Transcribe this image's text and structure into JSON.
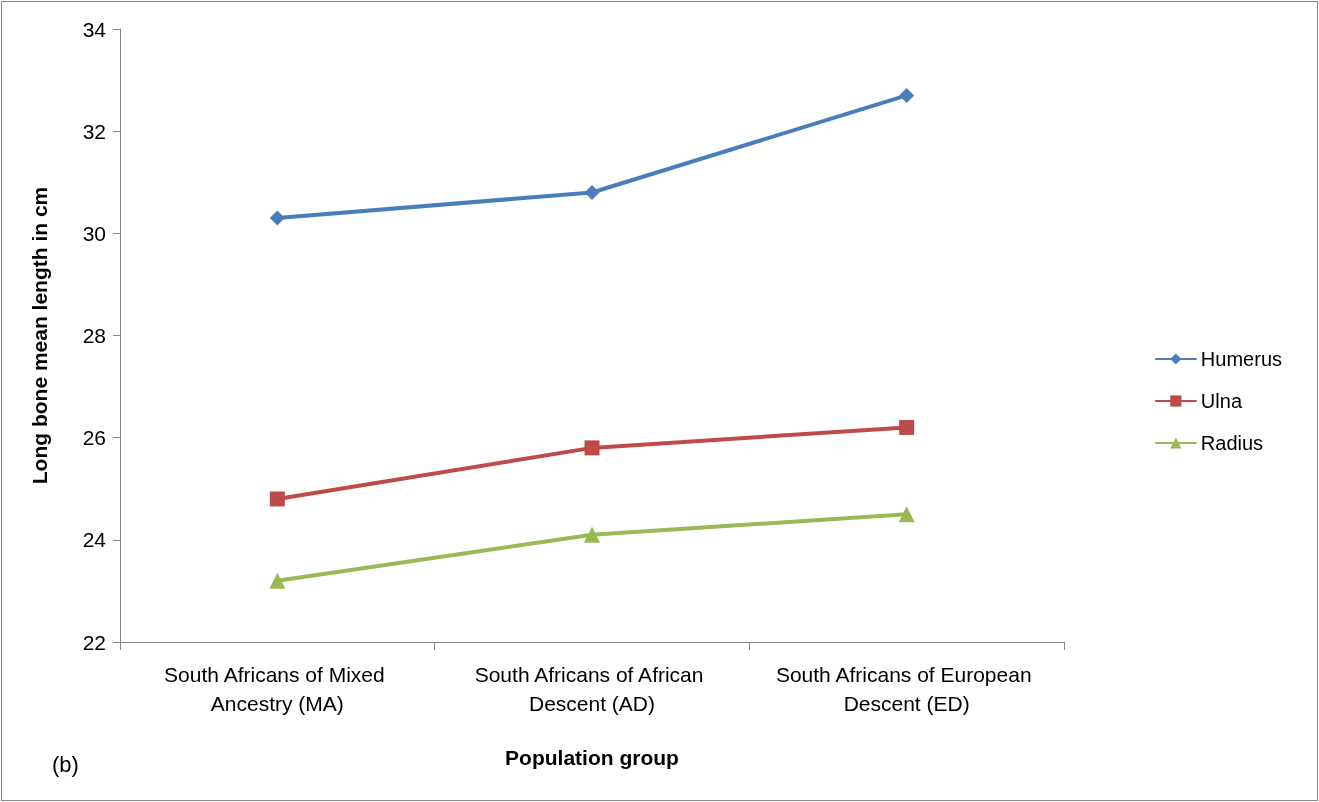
{
  "chart_data": {
    "type": "line",
    "xlabel": "Population group",
    "ylabel": "Long bone mean length in cm",
    "categories": [
      "South Africans of Mixed Ancestry (MA)",
      "South Africans of African Descent (AD)",
      "South Africans of European Descent (ED)"
    ],
    "series": [
      {
        "name": "Humerus",
        "color": "#4a7ebb",
        "marker": "diamond",
        "values": [
          30.3,
          30.8,
          32.7
        ]
      },
      {
        "name": "Ulna",
        "color": "#be4b48",
        "marker": "square",
        "values": [
          24.8,
          25.8,
          26.2
        ]
      },
      {
        "name": "Radius",
        "color": "#98b954",
        "marker": "triangle",
        "values": [
          23.2,
          24.1,
          24.5
        ]
      }
    ],
    "ylim": [
      22,
      34
    ],
    "yticks": [
      22,
      24,
      26,
      28,
      30,
      32,
      34
    ],
    "grid": false,
    "legend": "right",
    "annotations": [
      "(b)"
    ]
  }
}
